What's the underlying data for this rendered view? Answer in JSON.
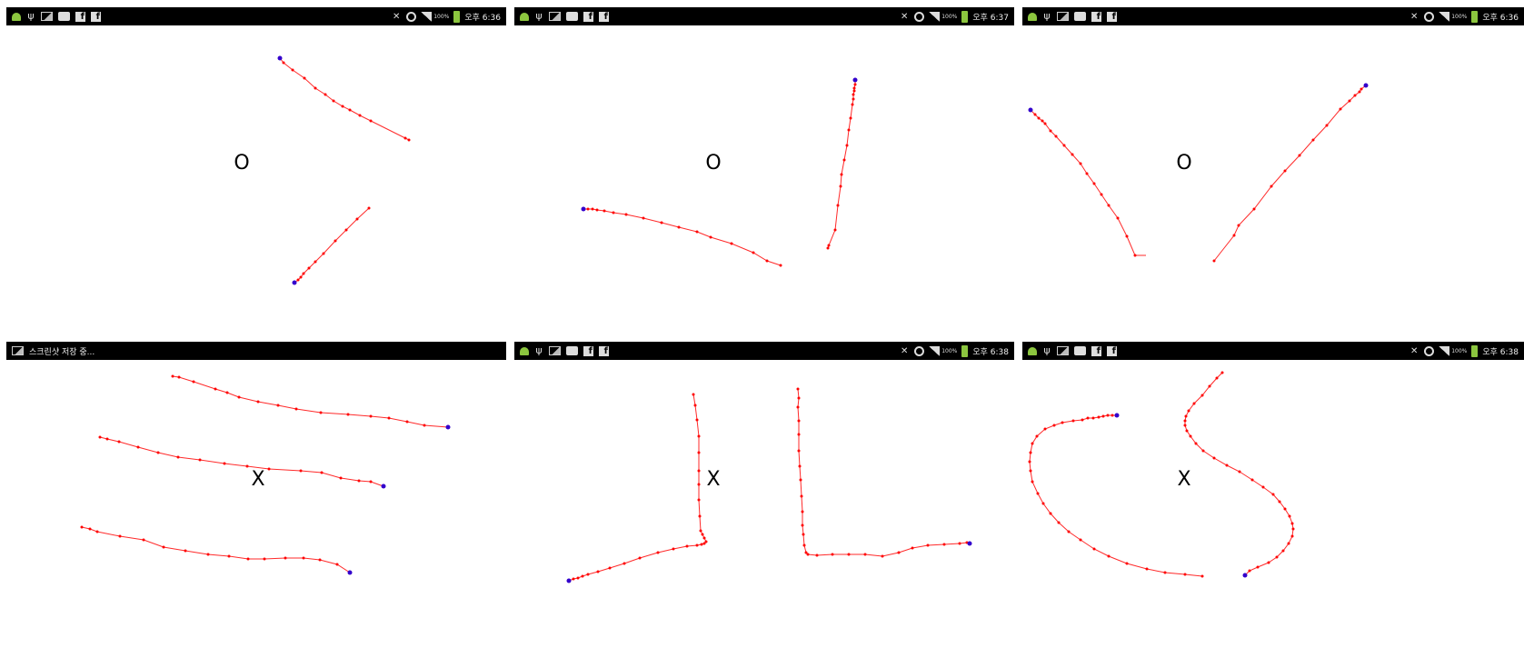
{
  "colors": {
    "stroke": "#ff2a2a",
    "point": "#ff0000",
    "endpoint": "#3300cc",
    "statusbar": "#000000"
  },
  "panels": [
    {
      "label": "O",
      "status": {
        "time": "오후 6:36",
        "battery": "100%",
        "notification": ""
      }
    },
    {
      "label": "O",
      "status": {
        "time": "오후 6:37",
        "battery": "100%",
        "notification": ""
      }
    },
    {
      "label": "O",
      "status": {
        "time": "오후 6:36",
        "battery": "100%",
        "notification": ""
      }
    },
    {
      "label": "X",
      "status": {
        "time": "",
        "battery": "",
        "notification": "스크린샷 저장 중..."
      }
    },
    {
      "label": "X",
      "status": {
        "time": "오후 6:38",
        "battery": "100%",
        "notification": ""
      }
    },
    {
      "label": "X",
      "status": {
        "time": "오후 6:38",
        "battery": "100%",
        "notification": ""
      }
    }
  ],
  "icons": {
    "left": [
      "android-icon",
      "usb-icon",
      "image-icon",
      "chat-icon",
      "facebook-icon",
      "facebook-icon"
    ],
    "right": [
      "mute-icon",
      "alarm-icon",
      "signal-icon",
      "battery-icon"
    ]
  }
}
